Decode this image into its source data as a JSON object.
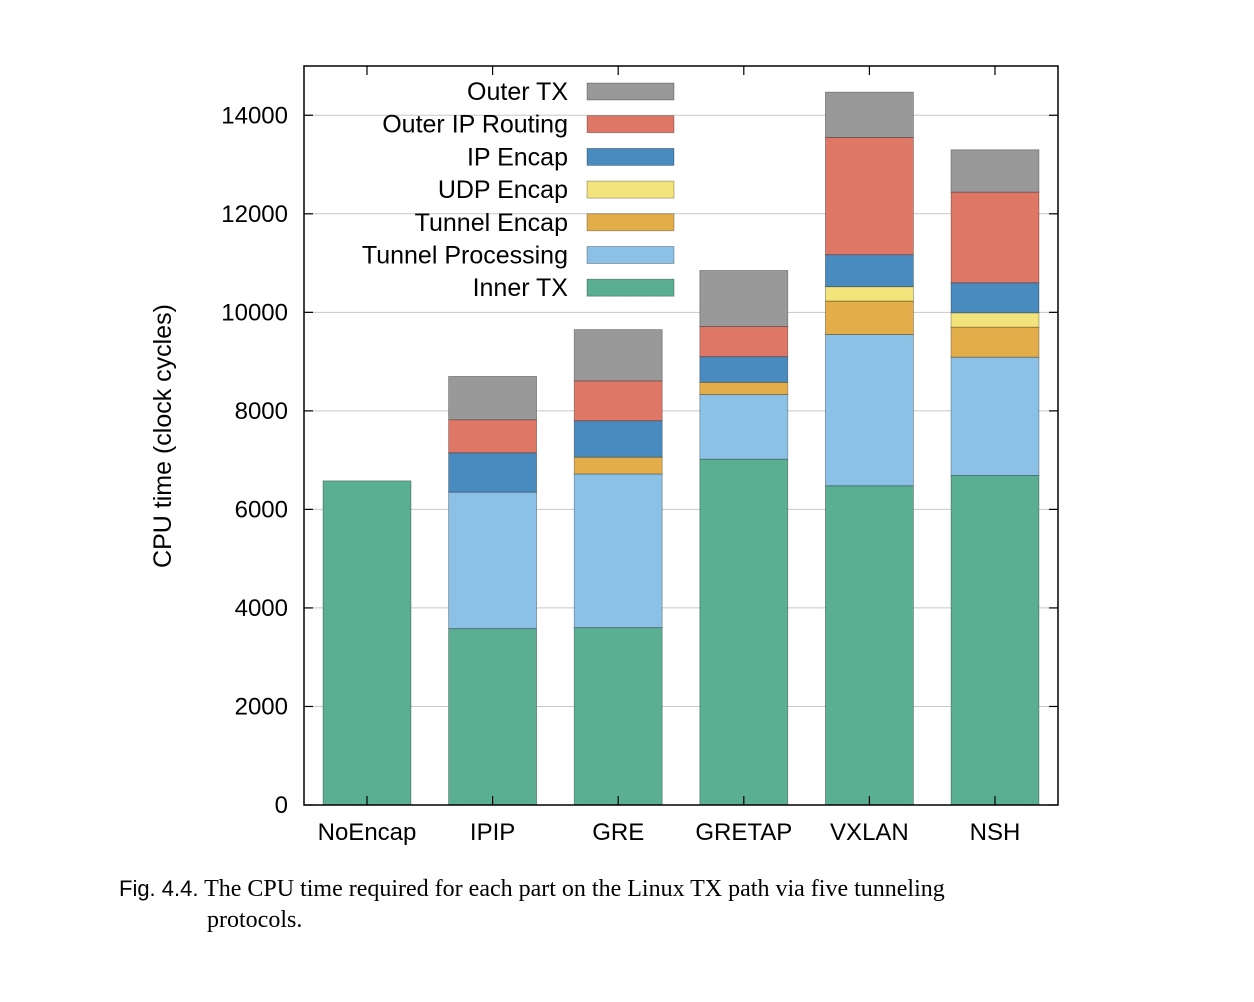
{
  "chart_data": {
    "type": "bar",
    "stacked": true,
    "ylabel": "CPU time (clock cycles)",
    "xlabel": "",
    "ylim": [
      0,
      15000
    ],
    "yticks": [
      0,
      2000,
      4000,
      6000,
      8000,
      10000,
      12000,
      14000
    ],
    "categories": [
      "NoEncap",
      "IPIP",
      "GRE",
      "GRETAP",
      "VXLAN",
      "NSH"
    ],
    "legend_position": "top-left",
    "grid": "horizontal",
    "series": [
      {
        "name": "Inner TX",
        "color": "#5aae91",
        "values": [
          6580,
          3580,
          3600,
          7020,
          6480,
          6690
        ]
      },
      {
        "name": "Tunnel Processing",
        "color": "#8bc1e7",
        "values": [
          0,
          2770,
          3120,
          1310,
          3070,
          2400
        ]
      },
      {
        "name": "Tunnel Encap",
        "color": "#e3ae4a",
        "values": [
          0,
          0,
          340,
          250,
          680,
          610
        ]
      },
      {
        "name": "UDP Encap",
        "color": "#f2e47a",
        "values": [
          0,
          0,
          0,
          0,
          290,
          290
        ]
      },
      {
        "name": "IP Encap",
        "color": "#4a8bbf",
        "values": [
          0,
          800,
          740,
          520,
          650,
          610
        ]
      },
      {
        "name": "Outer IP Routing",
        "color": "#df7767",
        "values": [
          0,
          670,
          810,
          610,
          2380,
          1840
        ]
      },
      {
        "name": "Outer TX",
        "color": "#999999",
        "values": [
          0,
          880,
          1040,
          1140,
          920,
          860
        ]
      }
    ]
  },
  "caption": {
    "label": "Fig. 4.4.",
    "text_line1": "The CPU time required for each part on the Linux TX path via five tunneling",
    "text_line2": "protocols."
  }
}
